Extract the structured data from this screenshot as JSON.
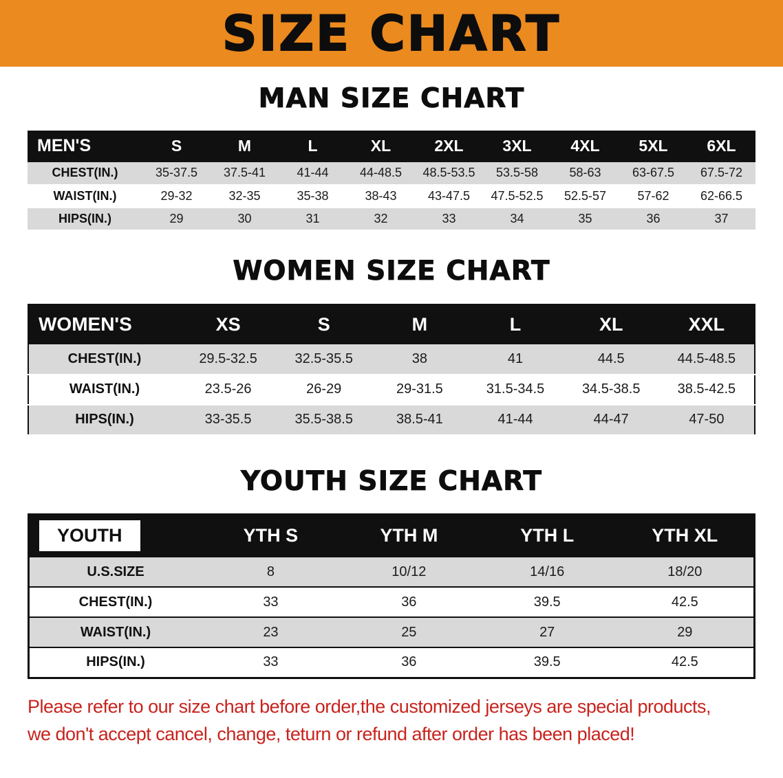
{
  "banner": {
    "title": "SIZE CHART"
  },
  "colors": {
    "banner_bg": "#EB8A1E",
    "table_header_bg": "#101010",
    "row_shade_gray": "#D9D9D9",
    "disclaimer_red": "#C8231D"
  },
  "sections": [
    {
      "heading": "MAN SIZE CHART",
      "label": "MEN'S",
      "columns": [
        "S",
        "M",
        "L",
        "XL",
        "2XL",
        "3XL",
        "4XL",
        "5XL",
        "6XL"
      ],
      "rows": [
        {
          "label": "CHEST(IN.)",
          "values": [
            "35-37.5",
            "37.5-41",
            "41-44",
            "44-48.5",
            "48.5-53.5",
            "53.5-58",
            "58-63",
            "63-67.5",
            "67.5-72"
          ]
        },
        {
          "label": "WAIST(IN.)",
          "values": [
            "29-32",
            "32-35",
            "35-38",
            "38-43",
            "43-47.5",
            "47.5-52.5",
            "52.5-57",
            "57-62",
            "62-66.5"
          ]
        },
        {
          "label": "HIPS(IN.)",
          "values": [
            "29",
            "30",
            "31",
            "32",
            "33",
            "34",
            "35",
            "36",
            "37"
          ]
        }
      ]
    },
    {
      "heading": "WOMEN SIZE CHART",
      "label": "WOMEN'S",
      "columns": [
        "XS",
        "S",
        "M",
        "L",
        "XL",
        "XXL"
      ],
      "rows": [
        {
          "label": "CHEST(IN.)",
          "values": [
            "29.5-32.5",
            "32.5-35.5",
            "38",
            "41",
            "44.5",
            "44.5-48.5"
          ]
        },
        {
          "label": "WAIST(IN.)",
          "values": [
            "23.5-26",
            "26-29",
            "29-31.5",
            "31.5-34.5",
            "34.5-38.5",
            "38.5-42.5"
          ]
        },
        {
          "label": "HIPS(IN.)",
          "values": [
            "33-35.5",
            "35.5-38.5",
            "38.5-41",
            "41-44",
            "44-47",
            "47-50"
          ]
        }
      ]
    },
    {
      "heading": "YOUTH SIZE CHART",
      "label": "YOUTH",
      "columns": [
        "YTH S",
        "YTH M",
        "YTH L",
        "YTH XL"
      ],
      "rows": [
        {
          "label": "U.S.SIZE",
          "values": [
            "8",
            "10/12",
            "14/16",
            "18/20"
          ]
        },
        {
          "label": "CHEST(IN.)",
          "values": [
            "33",
            "36",
            "39.5",
            "42.5"
          ]
        },
        {
          "label": "WAIST(IN.)",
          "values": [
            "23",
            "25",
            "27",
            "29"
          ]
        },
        {
          "label": "HIPS(IN.)",
          "values": [
            "33",
            "36",
            "39.5",
            "42.5"
          ]
        }
      ]
    }
  ],
  "disclaimer": {
    "line1": "Please refer to our size chart before order,the customized jerseys are special products,",
    "line2": "we don't accept cancel, change, teturn or refund after order has been placed!"
  }
}
